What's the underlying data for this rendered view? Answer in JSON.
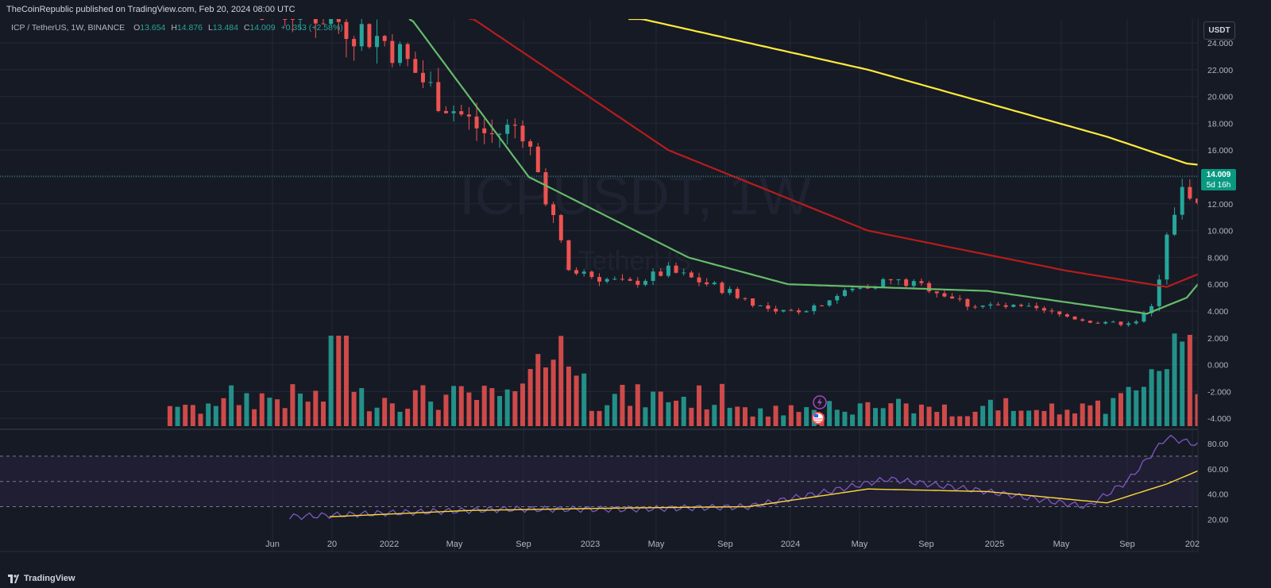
{
  "header": {
    "published": "TheCoinRepublic published on TradingView.com, Feb 20, 2024 08:00 UTC"
  },
  "legend": {
    "symbol": "ICP / TetherUS, 1W, BINANCE",
    "open_label": "O",
    "open": "13.654",
    "high_label": "H",
    "high": "14.876",
    "low_label": "L",
    "low": "13.484",
    "close_label": "C",
    "close": "14.009",
    "change": "+0.353 (+2.58%)"
  },
  "watermark": {
    "line1": "ICPUSDT, 1W",
    "line2": "/ TetherUS"
  },
  "unit_button": "USDT",
  "last_price": {
    "value": "14.009",
    "countdown": "5d 16h"
  },
  "footer": {
    "brand": "TradingView"
  },
  "colors": {
    "background": "#161a25",
    "grid": "#242836",
    "up": "#26a69a",
    "down": "#ef5350",
    "ema_fast": "#66bb6a",
    "ema_mid": "#b71c1c",
    "ema_slow": "#ffeb3b",
    "rsi": "#7e57c2",
    "rsi_ma": "#fdd835"
  },
  "chart_data": [
    {
      "type": "candlestick",
      "y_ticks": [
        "24.000",
        "22.000",
        "20.000",
        "18.000",
        "16.000",
        "14.000",
        "12.000",
        "10.000",
        "8.000",
        "6.000",
        "4.000",
        "2.000",
        "0.000",
        "-2.000",
        "-4.000"
      ],
      "ylim": [
        -4.8,
        25
      ],
      "x_ticks": [
        "Jun",
        "20",
        "2022",
        "May",
        "Sep",
        "2023",
        "May",
        "Sep",
        "2024",
        "May",
        "Sep",
        "2025",
        "May",
        "Sep",
        "202"
      ],
      "price_line": 14.009,
      "key_points": [
        {
          "t": "2021-10",
          "open": 26,
          "high": 28,
          "low": 21,
          "close": 24
        },
        {
          "t": "2022-03",
          "open": 18,
          "high": 23.5,
          "low": 14,
          "close": 17
        },
        {
          "t": "2022-05",
          "open": 12,
          "high": 13,
          "low": 6,
          "close": 7
        },
        {
          "t": "2022-12",
          "open": 4,
          "high": 4.5,
          "low": 3.2,
          "close": 3.6
        },
        {
          "t": "2023-02",
          "open": 6,
          "high": 7.8,
          "low": 5,
          "close": 5.8
        },
        {
          "t": "2023-10",
          "open": 3,
          "high": 3.4,
          "low": 2.8,
          "close": 3.1
        },
        {
          "t": "2023-12",
          "open": 6,
          "high": 16.3,
          "low": 5.5,
          "close": 12
        },
        {
          "t": "2024-02",
          "open": 13.654,
          "high": 14.876,
          "low": 13.484,
          "close": 14.009
        }
      ],
      "moving_averages": [
        {
          "color": "green",
          "points": [
            [
              2022.05,
              26
            ],
            [
              2022.35,
              14
            ],
            [
              2022.75,
              8
            ],
            [
              2023.0,
              6
            ],
            [
              2023.5,
              5.5
            ],
            [
              2023.9,
              3.8
            ],
            [
              2024.0,
              5
            ],
            [
              2024.13,
              9.7
            ]
          ]
        },
        {
          "color": "dark-red",
          "points": [
            [
              2022.2,
              26
            ],
            [
              2022.7,
              16
            ],
            [
              2023.2,
              10
            ],
            [
              2023.7,
              7
            ],
            [
              2023.95,
              5.8
            ],
            [
              2024.13,
              8
            ]
          ]
        },
        {
          "color": "yellow",
          "points": [
            [
              2022.6,
              26
            ],
            [
              2023.2,
              22
            ],
            [
              2023.8,
              17
            ],
            [
              2024.0,
              15
            ],
            [
              2024.13,
              14.6
            ]
          ]
        }
      ],
      "volume_peaks": [
        "2021-11",
        "2022-05",
        "2022-06",
        "2023-12"
      ]
    },
    {
      "type": "line",
      "title": "",
      "y_ticks": [
        "80.00",
        "60.00",
        "40.00",
        "20.00"
      ],
      "ylim": [
        12,
        90
      ],
      "bands": [
        70,
        50,
        30
      ],
      "series": [
        {
          "color": "rsi",
          "points": [
            [
              2021.75,
              22
            ],
            [
              2022.0,
              25
            ],
            [
              2022.3,
              28
            ],
            [
              2022.6,
              28
            ],
            [
              2022.9,
              30
            ],
            [
              2023.1,
              42
            ],
            [
              2023.25,
              52
            ],
            [
              2023.5,
              42
            ],
            [
              2023.75,
              30
            ],
            [
              2023.85,
              50
            ],
            [
              2023.95,
              85
            ],
            [
              2024.13,
              72
            ]
          ]
        },
        {
          "color": "rsi_ma",
          "points": [
            [
              2021.85,
              22
            ],
            [
              2022.2,
              27
            ],
            [
              2022.6,
              29
            ],
            [
              2022.9,
              30
            ],
            [
              2023.2,
              44
            ],
            [
              2023.5,
              42
            ],
            [
              2023.8,
              33
            ],
            [
              2023.95,
              48
            ],
            [
              2024.13,
              72
            ]
          ]
        }
      ]
    }
  ]
}
